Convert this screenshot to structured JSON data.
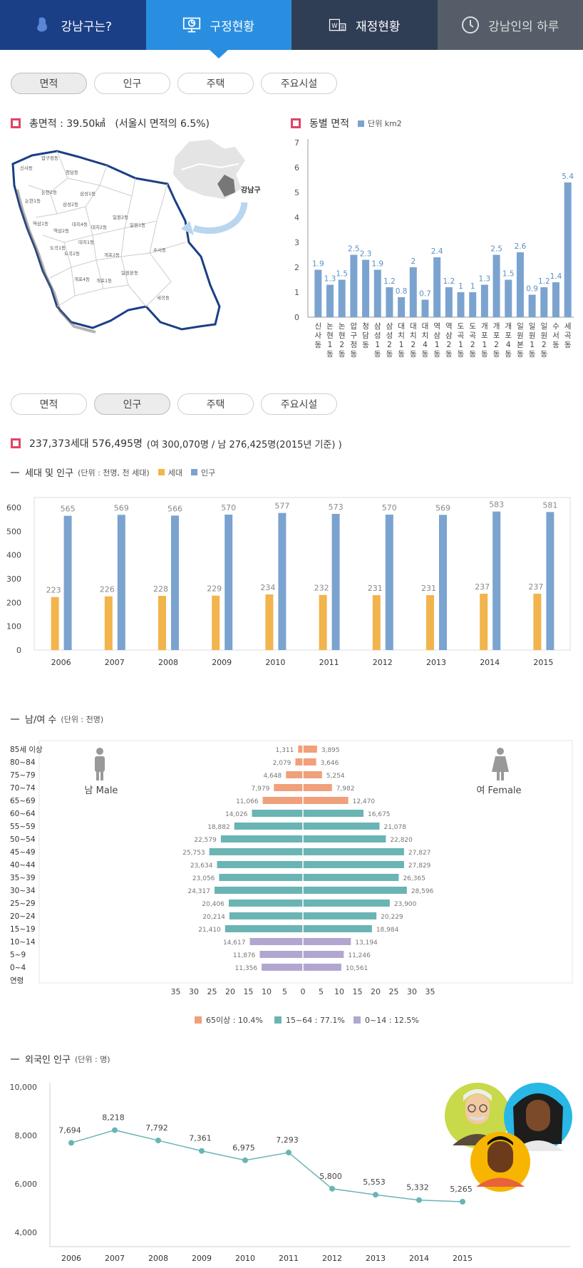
{
  "nav": [
    {
      "label": "강남구는?",
      "icon": "gangnam-mascot-icon"
    },
    {
      "label": "구정현황",
      "icon": "monitor-chart-icon"
    },
    {
      "label": "재정현황",
      "icon": "won-document-icon"
    },
    {
      "label": "강남인의 하루",
      "icon": "clock-icon"
    }
  ],
  "subtabs": [
    "면적",
    "인구",
    "주택",
    "주요시설"
  ],
  "colors": {
    "navy": "#1a3f87",
    "blue": "#2a8ee0",
    "dark": "#2f3e55",
    "gray": "#555d68",
    "bar": "#7ba3cf",
    "bar_label": "#5b8fc7",
    "household": "#f2b44c",
    "teal": "#6ab4b4",
    "orange": "#f0a07a",
    "purple": "#b2a6d0",
    "red": "#e04466"
  },
  "area": {
    "total": "총면적 : 39.50㎢",
    "ratio": "(서울시 면적의 6.5%)",
    "dong_title": "동별 면적",
    "unit": "단위 km2",
    "map_label": "강남구",
    "map_dongs": [
      "압구정동",
      "신사동",
      "청담동",
      "논현2동",
      "삼성1동",
      "논현1동",
      "삼성2동",
      "역삼1동",
      "대치4동",
      "대치2동",
      "역삼2동",
      "도곡1동",
      "대치1동",
      "일원2동",
      "일원1동",
      "도곡2동",
      "개포2동",
      "수서동",
      "개포4동",
      "개포1동",
      "일원본동",
      "세곡동"
    ]
  },
  "population": {
    "summary_bold": "237,373세대 576,495명",
    "summary_rest": "(여 300,070명 / 남 276,425명(2015년 기준) )",
    "hh_title": "세대 및 인구",
    "hh_unit": "(단위 : 천명, 천 세대)",
    "hh_leg1": "세대",
    "hh_leg2": "인구",
    "gender_title": "남/여 수",
    "gender_unit": "(단위 : 천명)",
    "male": "남 Male",
    "female": "여 Female",
    "age_axis": "연령",
    "leg65": "65이상 : 10.4%",
    "leg15": "15~64 : 77.1%",
    "leg0": "0~14 : 12.5%",
    "foreign_title": "외국인 인구",
    "foreign_unit": "(단위 : 명)"
  },
  "chart_data": [
    {
      "type": "bar",
      "title": "동별 면적",
      "legend": "단위 km2",
      "categories": [
        "신사동",
        "논현1동",
        "논현2동",
        "압구정동",
        "청담동",
        "삼성1동",
        "삼성2동",
        "대치1동",
        "대치2동",
        "대치4동",
        "역삼1동",
        "역삼2동",
        "도곡1동",
        "도곡2동",
        "개포1동",
        "개포2동",
        "개포4동",
        "일원본동",
        "일원1동",
        "일원2동",
        "수서동",
        "세곡동"
      ],
      "values": [
        1.9,
        1.3,
        1.5,
        2.5,
        2.3,
        1.9,
        1.2,
        0.8,
        2,
        0.7,
        2.4,
        1.2,
        1,
        1,
        1.3,
        2.5,
        1.5,
        2.6,
        0.9,
        1.2,
        1.4,
        5.4
      ],
      "ylim": [
        0,
        7
      ],
      "yticks": [
        0,
        1,
        2,
        3,
        4,
        5,
        6,
        7
      ]
    },
    {
      "type": "bar",
      "title": "세대 및 인구",
      "categories": [
        "2006",
        "2007",
        "2008",
        "2009",
        "2010",
        "2011",
        "2012",
        "2013",
        "2014",
        "2015"
      ],
      "series": [
        {
          "name": "세대",
          "values": [
            223,
            226,
            228,
            229,
            234,
            232,
            231,
            231,
            237,
            237
          ]
        },
        {
          "name": "인구",
          "values": [
            565,
            569,
            566,
            570,
            577,
            573,
            570,
            569,
            583,
            581
          ]
        }
      ],
      "ylim": [
        0,
        600
      ],
      "yticks": [
        0,
        100,
        200,
        300,
        400,
        500,
        600
      ]
    },
    {
      "type": "bar",
      "title": "남/여 수",
      "categories": [
        "85세 이상",
        "80~84",
        "75~79",
        "70~74",
        "65~69",
        "60~64",
        "55~59",
        "50~54",
        "45~49",
        "40~44",
        "35~39",
        "30~34",
        "25~29",
        "20~24",
        "15~19",
        "10~14",
        "5~9",
        "0~4"
      ],
      "groups": [
        "65+",
        "65+",
        "65+",
        "65+",
        "65+",
        "15-64",
        "15-64",
        "15-64",
        "15-64",
        "15-64",
        "15-64",
        "15-64",
        "15-64",
        "15-64",
        "15-64",
        "0-14",
        "0-14",
        "0-14"
      ],
      "series": [
        {
          "name": "남 Male",
          "values": [
            1311,
            2079,
            4648,
            7979,
            11066,
            14026,
            18882,
            22579,
            25753,
            23634,
            23056,
            24317,
            20406,
            20214,
            21410,
            14617,
            11876,
            11356
          ]
        },
        {
          "name": "여 Female",
          "values": [
            3895,
            3646,
            5254,
            7982,
            12470,
            16675,
            21078,
            22820,
            27827,
            27829,
            26365,
            28596,
            23900,
            20229,
            18984,
            13194,
            11246,
            10561
          ]
        }
      ],
      "xticks": [
        35,
        30,
        25,
        20,
        15,
        10,
        5,
        0,
        5,
        10,
        15,
        20,
        25,
        30,
        35
      ],
      "xlim": [
        -35,
        35
      ]
    },
    {
      "type": "line",
      "title": "외국인 인구",
      "x": [
        "2006",
        "2007",
        "2008",
        "2009",
        "2010",
        "2011",
        "2012",
        "2013",
        "2014",
        "2015"
      ],
      "labels": [
        "7,694",
        "8,218",
        "7,792",
        "7,361",
        "6,975",
        "7,293",
        "5,800",
        "5,553",
        "5,332",
        "5,265"
      ],
      "y": [
        7694,
        8218,
        7792,
        7361,
        6975,
        7293,
        5800,
        5553,
        5332,
        5265
      ],
      "ylim": [
        4000,
        10000
      ],
      "yticks": [
        "4,000",
        "6,000",
        "8,000",
        "10,000"
      ]
    }
  ]
}
